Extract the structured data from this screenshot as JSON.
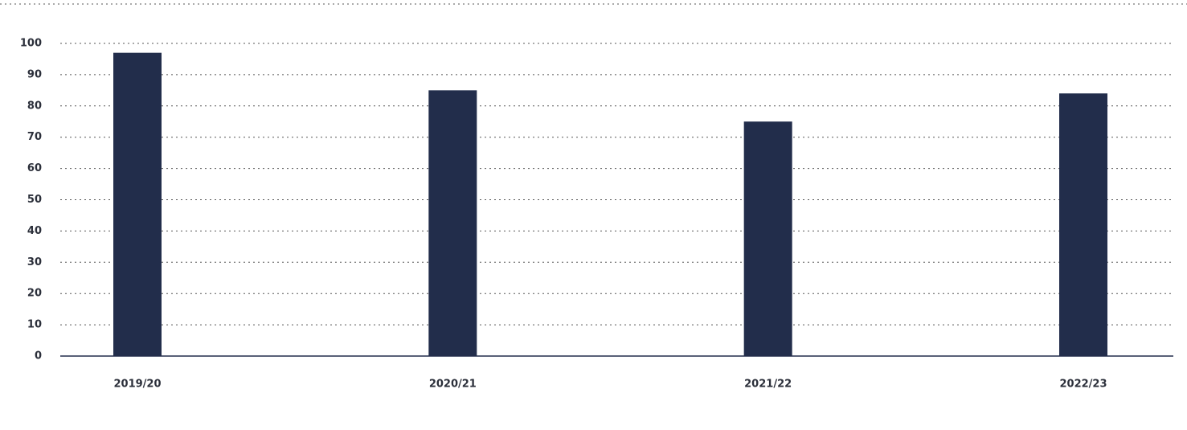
{
  "chart_data": {
    "type": "bar",
    "categories": [
      "2019/20",
      "2020/21",
      "2021/22",
      "2022/23"
    ],
    "values": [
      97,
      85,
      75,
      84
    ],
    "color": "#222d4b",
    "ylim": [
      0,
      100
    ],
    "yticks": [
      0,
      10,
      20,
      30,
      40,
      50,
      60,
      70,
      80,
      90,
      100
    ],
    "grid": true
  }
}
